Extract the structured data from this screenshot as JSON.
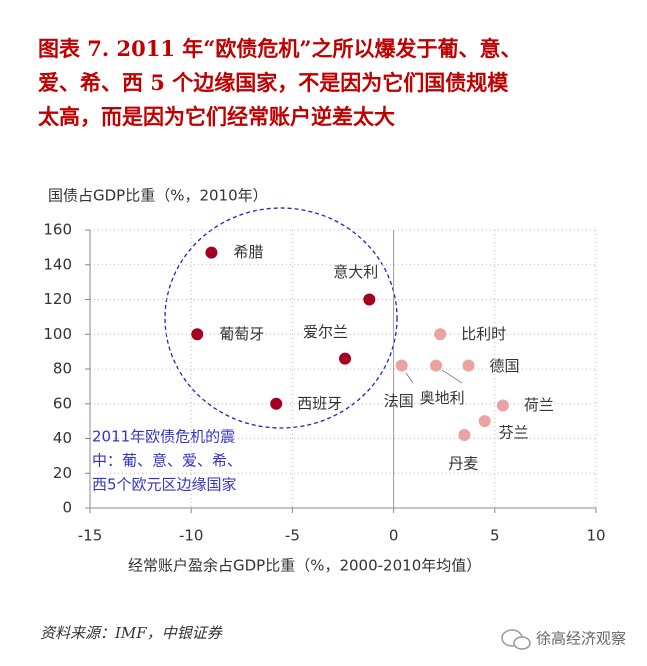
{
  "chart_data": {
    "type": "scatter",
    "title_lines": [
      "图表 7. 2011 年“欧债危机”之所以爆发于葡、意、",
      "爱、希、西 5 个边缘国家，不是因为它们国债规模",
      "太高，而是因为它们经常账户逆差太大"
    ],
    "y_label": "国债占GDP比重（%，2010年）",
    "x_label": "经常账户盈余占GDP比重（%，2000-2010年均值）",
    "annotation_lines": [
      "2011年欧债危机的震",
      "中：葡、意、爱、希、",
      "西5个欧元区边缘国家"
    ],
    "source": "资料来源：IMF，中银证券",
    "watermark": "徐高经济观察",
    "xlim": [
      -15,
      10
    ],
    "xticks": [
      -15,
      -10,
      -5,
      0,
      5,
      10
    ],
    "ylim": [
      0,
      160
    ],
    "yticks": [
      0,
      20,
      40,
      60,
      80,
      100,
      120,
      140,
      160
    ],
    "grid": true,
    "series": [
      {
        "color": "#a50021",
        "labels": [
          "希腊",
          "意大利",
          "葡萄牙",
          "爱尔兰",
          "西班牙"
        ],
        "x": [
          -9.0,
          -1.2,
          -9.7,
          -2.4,
          -5.8
        ],
        "y": [
          147,
          120,
          100,
          86,
          60
        ]
      },
      {
        "color": "#eba2a2",
        "labels": [
          "比利时",
          "德国",
          "法国",
          "奥地利",
          "荷兰",
          "芬兰",
          "丹麦"
        ],
        "x": [
          2.3,
          3.7,
          0.4,
          2.1,
          5.4,
          4.5,
          3.5
        ],
        "y": [
          100,
          82,
          82,
          82,
          59,
          50,
          42
        ]
      }
    ]
  }
}
